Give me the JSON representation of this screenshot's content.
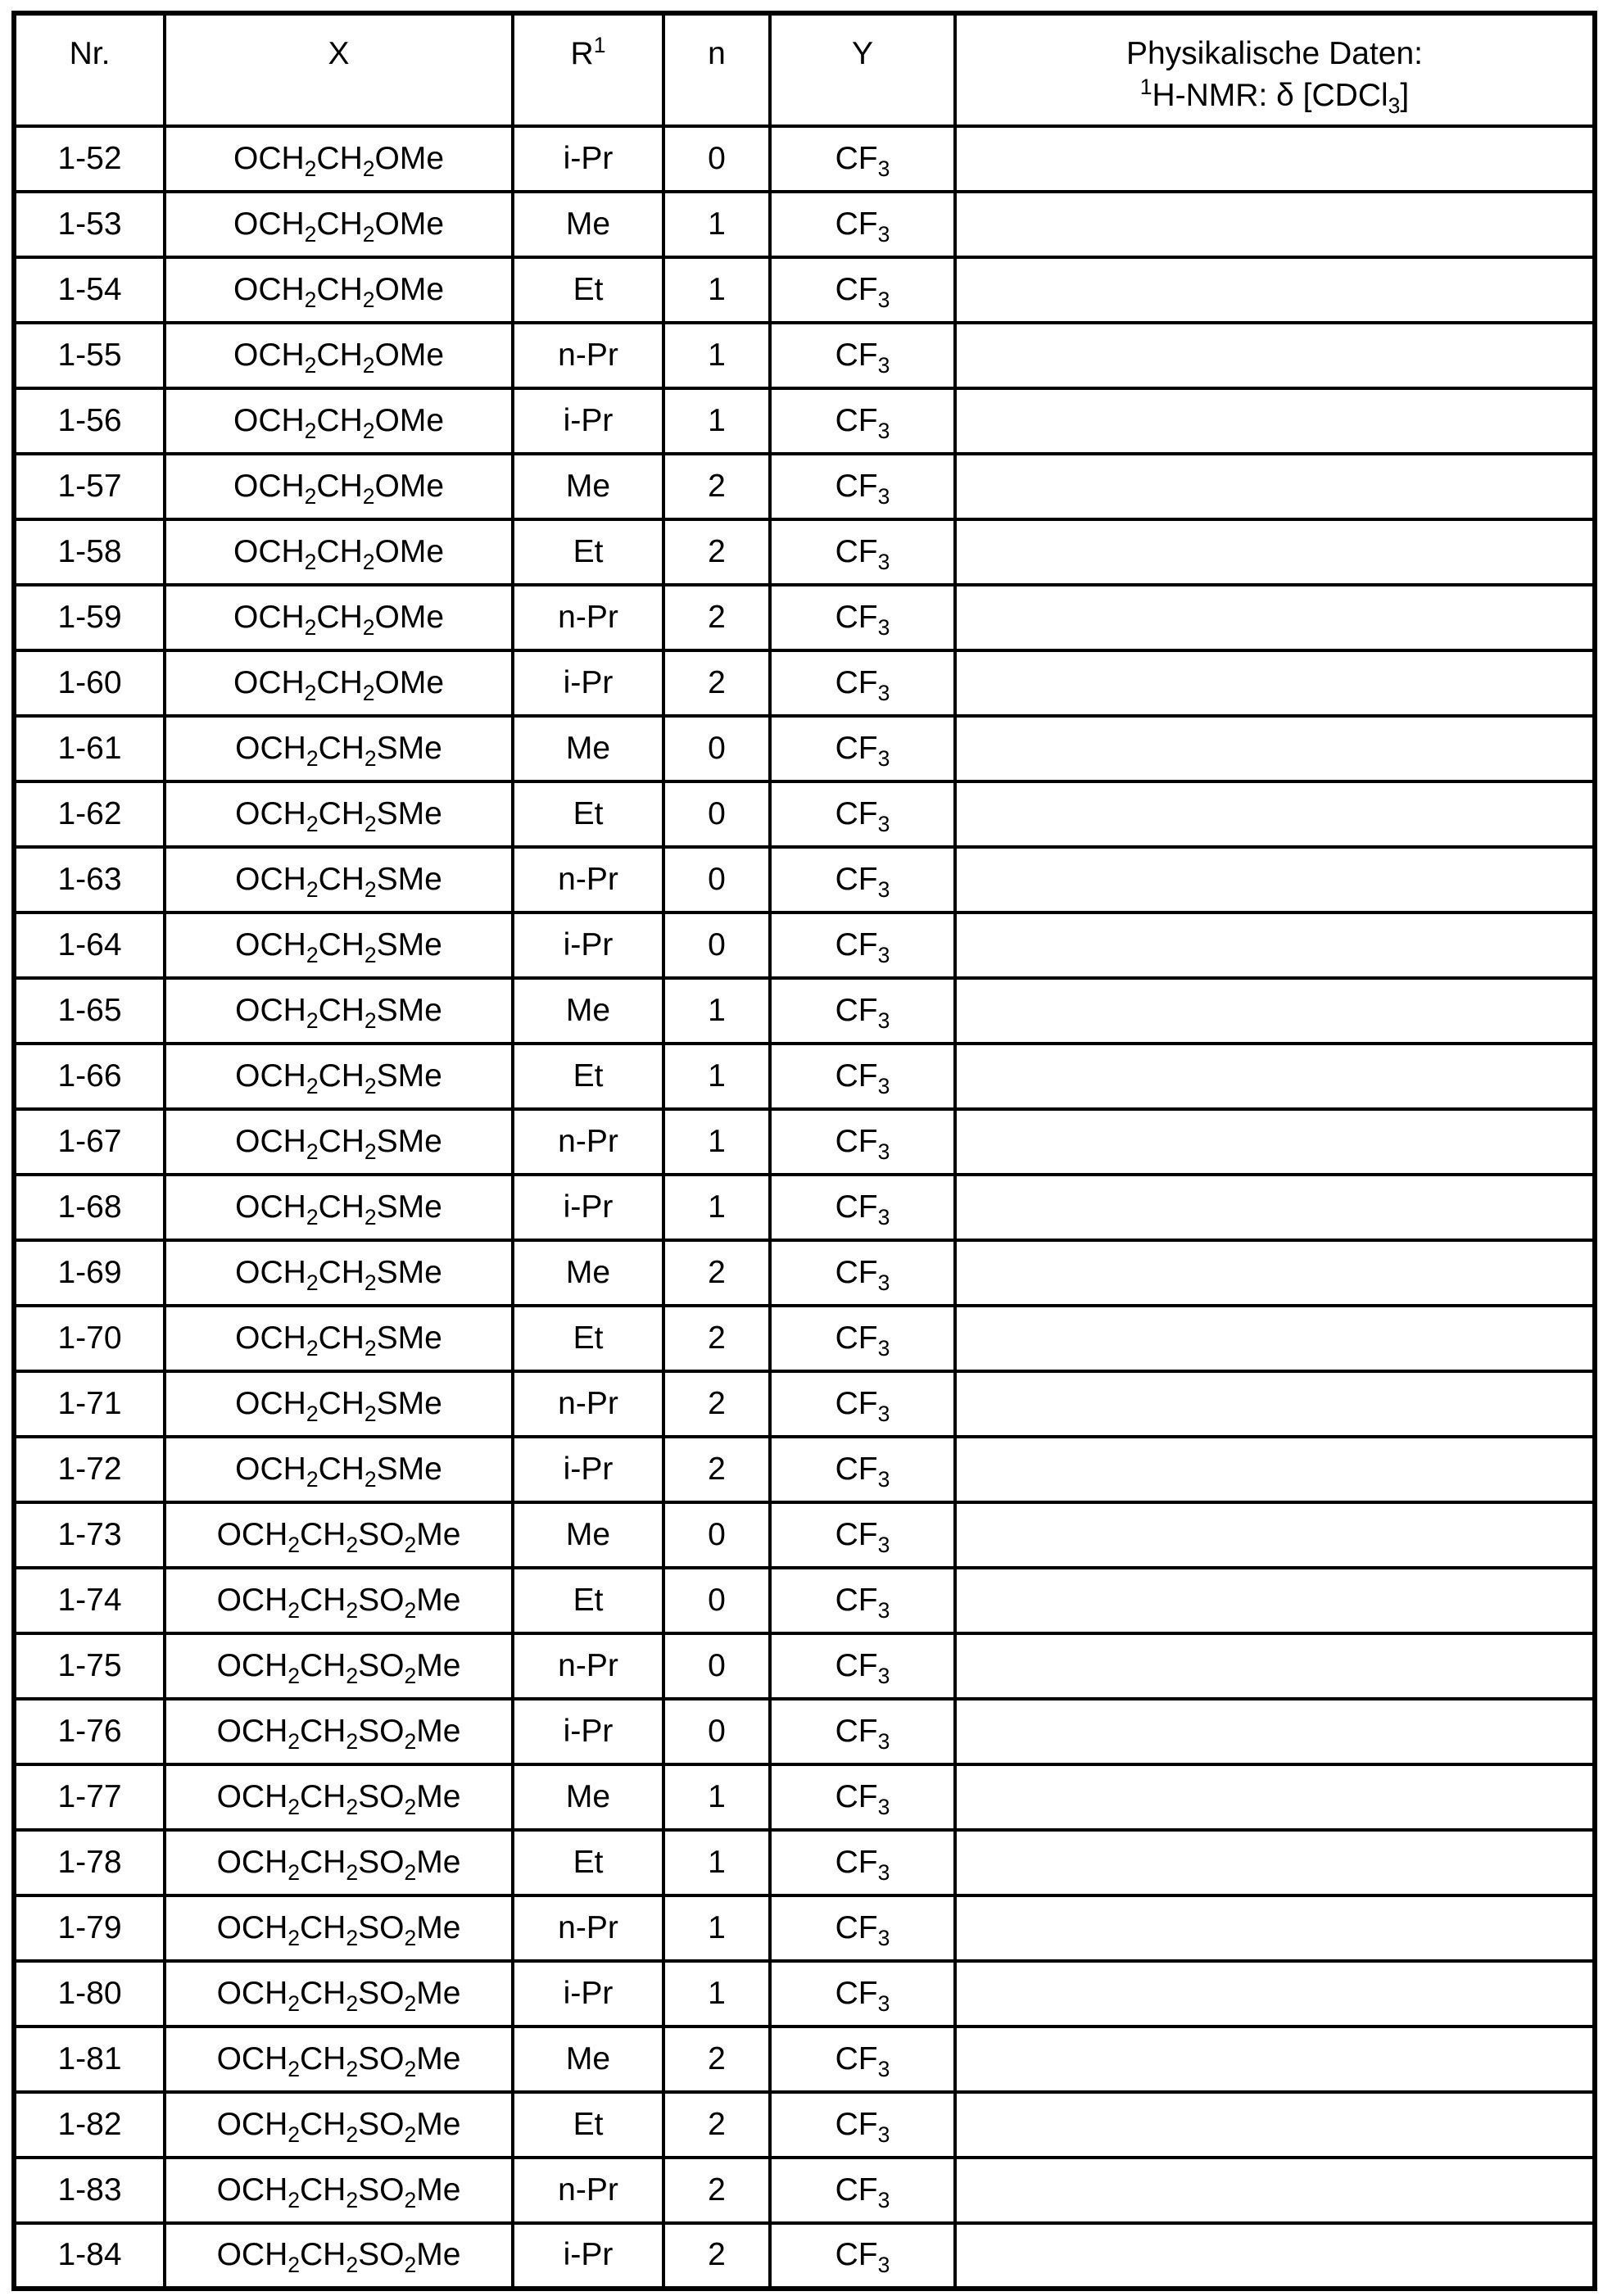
{
  "page": {
    "background_color": "#ffffff",
    "text_color": "#000000",
    "border_color": "#000000"
  },
  "table": {
    "header": {
      "nr": "Nr.",
      "x": "X",
      "r1": "R^1",
      "n": "n",
      "y": "Y",
      "phys_line1": "Physikalische Daten:",
      "phys_line2": "^1H-NMR: δ [CDCl_3]"
    },
    "rows": [
      {
        "nr": "1-52",
        "x": "OCH_2CH_2OMe",
        "r1": "i-Pr",
        "n": "0",
        "y": "CF_3",
        "data": ""
      },
      {
        "nr": "1-53",
        "x": "OCH_2CH_2OMe",
        "r1": "Me",
        "n": "1",
        "y": "CF_3",
        "data": ""
      },
      {
        "nr": "1-54",
        "x": "OCH_2CH_2OMe",
        "r1": "Et",
        "n": "1",
        "y": "CF_3",
        "data": ""
      },
      {
        "nr": "1-55",
        "x": "OCH_2CH_2OMe",
        "r1": "n-Pr",
        "n": "1",
        "y": "CF_3",
        "data": ""
      },
      {
        "nr": "1-56",
        "x": "OCH_2CH_2OMe",
        "r1": "i-Pr",
        "n": "1",
        "y": "CF_3",
        "data": ""
      },
      {
        "nr": "1-57",
        "x": "OCH_2CH_2OMe",
        "r1": "Me",
        "n": "2",
        "y": "CF_3",
        "data": ""
      },
      {
        "nr": "1-58",
        "x": "OCH_2CH_2OMe",
        "r1": "Et",
        "n": "2",
        "y": "CF_3",
        "data": ""
      },
      {
        "nr": "1-59",
        "x": "OCH_2CH_2OMe",
        "r1": "n-Pr",
        "n": "2",
        "y": "CF_3",
        "data": ""
      },
      {
        "nr": "1-60",
        "x": "OCH_2CH_2OMe",
        "r1": "i-Pr",
        "n": "2",
        "y": "CF_3",
        "data": ""
      },
      {
        "nr": "1-61",
        "x": "OCH_2CH_2SMe",
        "r1": "Me",
        "n": "0",
        "y": "CF_3",
        "data": ""
      },
      {
        "nr": "1-62",
        "x": "OCH_2CH_2SMe",
        "r1": "Et",
        "n": "0",
        "y": "CF_3",
        "data": ""
      },
      {
        "nr": "1-63",
        "x": "OCH_2CH_2SMe",
        "r1": "n-Pr",
        "n": "0",
        "y": "CF_3",
        "data": ""
      },
      {
        "nr": "1-64",
        "x": "OCH_2CH_2SMe",
        "r1": "i-Pr",
        "n": "0",
        "y": "CF_3",
        "data": ""
      },
      {
        "nr": "1-65",
        "x": "OCH_2CH_2SMe",
        "r1": "Me",
        "n": "1",
        "y": "CF_3",
        "data": ""
      },
      {
        "nr": "1-66",
        "x": "OCH_2CH_2SMe",
        "r1": "Et",
        "n": "1",
        "y": "CF_3",
        "data": ""
      },
      {
        "nr": "1-67",
        "x": "OCH_2CH_2SMe",
        "r1": "n-Pr",
        "n": "1",
        "y": "CF_3",
        "data": ""
      },
      {
        "nr": "1-68",
        "x": "OCH_2CH_2SMe",
        "r1": "i-Pr",
        "n": "1",
        "y": "CF_3",
        "data": ""
      },
      {
        "nr": "1-69",
        "x": "OCH_2CH_2SMe",
        "r1": "Me",
        "n": "2",
        "y": "CF_3",
        "data": ""
      },
      {
        "nr": "1-70",
        "x": "OCH_2CH_2SMe",
        "r1": "Et",
        "n": "2",
        "y": "CF_3",
        "data": ""
      },
      {
        "nr": "1-71",
        "x": "OCH_2CH_2SMe",
        "r1": "n-Pr",
        "n": "2",
        "y": "CF_3",
        "data": ""
      },
      {
        "nr": "1-72",
        "x": "OCH_2CH_2SMe",
        "r1": "i-Pr",
        "n": "2",
        "y": "CF_3",
        "data": ""
      },
      {
        "nr": "1-73",
        "x": "OCH_2CH_2SO_2Me",
        "r1": "Me",
        "n": "0",
        "y": "CF_3",
        "data": ""
      },
      {
        "nr": "1-74",
        "x": "OCH_2CH_2SO_2Me",
        "r1": "Et",
        "n": "0",
        "y": "CF_3",
        "data": ""
      },
      {
        "nr": "1-75",
        "x": "OCH_2CH_2SO_2Me",
        "r1": "n-Pr",
        "n": "0",
        "y": "CF_3",
        "data": ""
      },
      {
        "nr": "1-76",
        "x": "OCH_2CH_2SO_2Me",
        "r1": "i-Pr",
        "n": "0",
        "y": "CF_3",
        "data": ""
      },
      {
        "nr": "1-77",
        "x": "OCH_2CH_2SO_2Me",
        "r1": "Me",
        "n": "1",
        "y": "CF_3",
        "data": ""
      },
      {
        "nr": "1-78",
        "x": "OCH_2CH_2SO_2Me",
        "r1": "Et",
        "n": "1",
        "y": "CF_3",
        "data": ""
      },
      {
        "nr": "1-79",
        "x": "OCH_2CH_2SO_2Me",
        "r1": "n-Pr",
        "n": "1",
        "y": "CF_3",
        "data": ""
      },
      {
        "nr": "1-80",
        "x": "OCH_2CH_2SO_2Me",
        "r1": "i-Pr",
        "n": "1",
        "y": "CF_3",
        "data": ""
      },
      {
        "nr": "1-81",
        "x": "OCH_2CH_2SO_2Me",
        "r1": "Me",
        "n": "2",
        "y": "CF_3",
        "data": ""
      },
      {
        "nr": "1-82",
        "x": "OCH_2CH_2SO_2Me",
        "r1": "Et",
        "n": "2",
        "y": "CF_3",
        "data": ""
      },
      {
        "nr": "1-83",
        "x": "OCH_2CH_2SO_2Me",
        "r1": "n-Pr",
        "n": "2",
        "y": "CF_3",
        "data": ""
      },
      {
        "nr": "1-84",
        "x": "OCH_2CH_2SO_2Me",
        "r1": "i-Pr",
        "n": "2",
        "y": "CF_3",
        "data": ""
      }
    ]
  }
}
